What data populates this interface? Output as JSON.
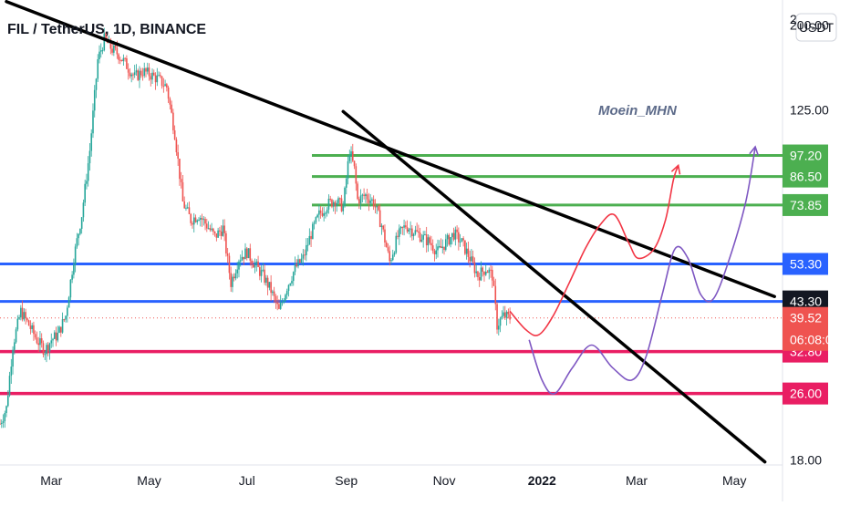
{
  "header": {
    "title": "FIL / TetherUS, 1D, BINANCE",
    "currency_button": "USDT",
    "top_clipped_label": "2"
  },
  "watermark": "Moein_MHN",
  "colors": {
    "up": "#26a69a",
    "down": "#ef5350",
    "green_level": "#4caf50",
    "blue_level": "#2962ff",
    "pink_level": "#e91e63",
    "path_red": "#f23645",
    "path_purple": "#7e57c2",
    "trendline": "#000000"
  },
  "chart_data": {
    "type": "candlestick",
    "title": "FIL / TetherUS, 1D, BINANCE",
    "y_scale": "log",
    "ylim": [
      17.5,
      230
    ],
    "x_range": [
      "2021-01-28",
      "2022-05-31"
    ],
    "y_ticks": [
      "200.00",
      "125.00",
      "18.00"
    ],
    "x_ticks": [
      {
        "label": "Mar",
        "date": "2021-03-01"
      },
      {
        "label": "May",
        "date": "2021-05-01"
      },
      {
        "label": "Jul",
        "date": "2021-07-01"
      },
      {
        "label": "Sep",
        "date": "2021-09-01"
      },
      {
        "label": "Nov",
        "date": "2021-11-01"
      },
      {
        "label": "2022",
        "date": "2022-01-01"
      },
      {
        "label": "Mar",
        "date": "2022-03-01"
      },
      {
        "label": "May",
        "date": "2022-05-01"
      }
    ],
    "price_path": [
      [
        "2021-01-28",
        22
      ],
      [
        "2021-02-01",
        24
      ],
      [
        "2021-02-05",
        34
      ],
      [
        "2021-02-10",
        41
      ],
      [
        "2021-02-15",
        38
      ],
      [
        "2021-02-20",
        35
      ],
      [
        "2021-02-25",
        33
      ],
      [
        "2021-03-01",
        35
      ],
      [
        "2021-03-05",
        36
      ],
      [
        "2021-03-10",
        40
      ],
      [
        "2021-03-15",
        55
      ],
      [
        "2021-03-20",
        70
      ],
      [
        "2021-03-25",
        100
      ],
      [
        "2021-03-30",
        165
      ],
      [
        "2021-04-03",
        185
      ],
      [
        "2021-04-08",
        175
      ],
      [
        "2021-04-12",
        170
      ],
      [
        "2021-04-17",
        160
      ],
      [
        "2021-04-22",
        150
      ],
      [
        "2021-04-27",
        155
      ],
      [
        "2021-05-02",
        152
      ],
      [
        "2021-05-07",
        148
      ],
      [
        "2021-05-12",
        142
      ],
      [
        "2021-05-17",
        110
      ],
      [
        "2021-05-22",
        75
      ],
      [
        "2021-05-27",
        68
      ],
      [
        "2021-06-01",
        70
      ],
      [
        "2021-06-06",
        66
      ],
      [
        "2021-06-11",
        62
      ],
      [
        "2021-06-16",
        65
      ],
      [
        "2021-06-21",
        48
      ],
      [
        "2021-06-26",
        55
      ],
      [
        "2021-07-01",
        57
      ],
      [
        "2021-07-06",
        53
      ],
      [
        "2021-07-11",
        50
      ],
      [
        "2021-07-16",
        46
      ],
      [
        "2021-07-21",
        41
      ],
      [
        "2021-07-26",
        47
      ],
      [
        "2021-07-31",
        52
      ],
      [
        "2021-08-05",
        55
      ],
      [
        "2021-08-10",
        63
      ],
      [
        "2021-08-15",
        70
      ],
      [
        "2021-08-20",
        74
      ],
      [
        "2021-08-25",
        76
      ],
      [
        "2021-08-30",
        73
      ],
      [
        "2021-09-03",
        100
      ],
      [
        "2021-09-06",
        90
      ],
      [
        "2021-09-08",
        76
      ],
      [
        "2021-09-13",
        78
      ],
      [
        "2021-09-18",
        75
      ],
      [
        "2021-09-23",
        66
      ],
      [
        "2021-09-28",
        54
      ],
      [
        "2021-10-03",
        62
      ],
      [
        "2021-10-08",
        66
      ],
      [
        "2021-10-13",
        64
      ],
      [
        "2021-10-18",
        62
      ],
      [
        "2021-10-23",
        60
      ],
      [
        "2021-10-28",
        57
      ],
      [
        "2021-11-02",
        60
      ],
      [
        "2021-11-07",
        63
      ],
      [
        "2021-11-12",
        60
      ],
      [
        "2021-11-17",
        55
      ],
      [
        "2021-11-22",
        50
      ],
      [
        "2021-11-27",
        52
      ],
      [
        "2021-12-01",
        50
      ],
      [
        "2021-12-04",
        38
      ],
      [
        "2021-12-08",
        40
      ],
      [
        "2021-12-12",
        39.52
      ]
    ],
    "last_price": "39.52",
    "countdown": "06:08:05",
    "price_levels": [
      {
        "label": "97.20",
        "value": 97.2,
        "color": "#4caf50"
      },
      {
        "label": "86.50",
        "value": 86.5,
        "color": "#4caf50"
      },
      {
        "label": "73.85",
        "value": 73.85,
        "color": "#4caf50"
      },
      {
        "label": "53.30",
        "value": 53.3,
        "color": "#2962ff"
      },
      {
        "label": "43.30",
        "value": 43.3,
        "color": "#131722"
      },
      {
        "label": "32.80",
        "value": 32.8,
        "color": "#e91e63"
      },
      {
        "label": "26.00",
        "value": 26.0,
        "color": "#e91e63"
      }
    ],
    "trendlines": [
      {
        "from": [
          "2021-02-01",
          228
        ],
        "to": [
          "2022-05-26",
          44.5
        ]
      },
      {
        "from": [
          "2021-08-30",
          124
        ],
        "to": [
          "2022-05-20",
          17.8
        ]
      }
    ],
    "projection_paths": [
      {
        "color": "#f23645",
        "points": [
          [
            "2021-12-12",
            41
          ],
          [
            "2021-12-22",
            37
          ],
          [
            "2021-12-30",
            36
          ],
          [
            "2022-01-08",
            40
          ],
          [
            "2022-01-18",
            48
          ],
          [
            "2022-01-28",
            58
          ],
          [
            "2022-02-06",
            66
          ],
          [
            "2022-02-15",
            70
          ],
          [
            "2022-02-24",
            60
          ],
          [
            "2022-03-02",
            55
          ],
          [
            "2022-03-12",
            58
          ],
          [
            "2022-03-19",
            68
          ],
          [
            "2022-03-24",
            85
          ],
          [
            "2022-03-27",
            92
          ]
        ]
      },
      {
        "color": "#7e57c2",
        "points": [
          [
            "2021-12-24",
            35
          ],
          [
            "2022-01-01",
            28
          ],
          [
            "2022-01-09",
            26
          ],
          [
            "2022-01-20",
            30
          ],
          [
            "2022-02-01",
            34
          ],
          [
            "2022-02-14",
            30
          ],
          [
            "2022-02-26",
            28
          ],
          [
            "2022-03-07",
            32
          ],
          [
            "2022-03-17",
            45
          ],
          [
            "2022-03-25",
            58
          ],
          [
            "2022-04-02",
            55
          ],
          [
            "2022-04-10",
            45
          ],
          [
            "2022-04-18",
            44
          ],
          [
            "2022-04-28",
            55
          ],
          [
            "2022-05-08",
            75
          ],
          [
            "2022-05-14",
            102
          ]
        ]
      }
    ],
    "grid": false,
    "legend": "none"
  }
}
